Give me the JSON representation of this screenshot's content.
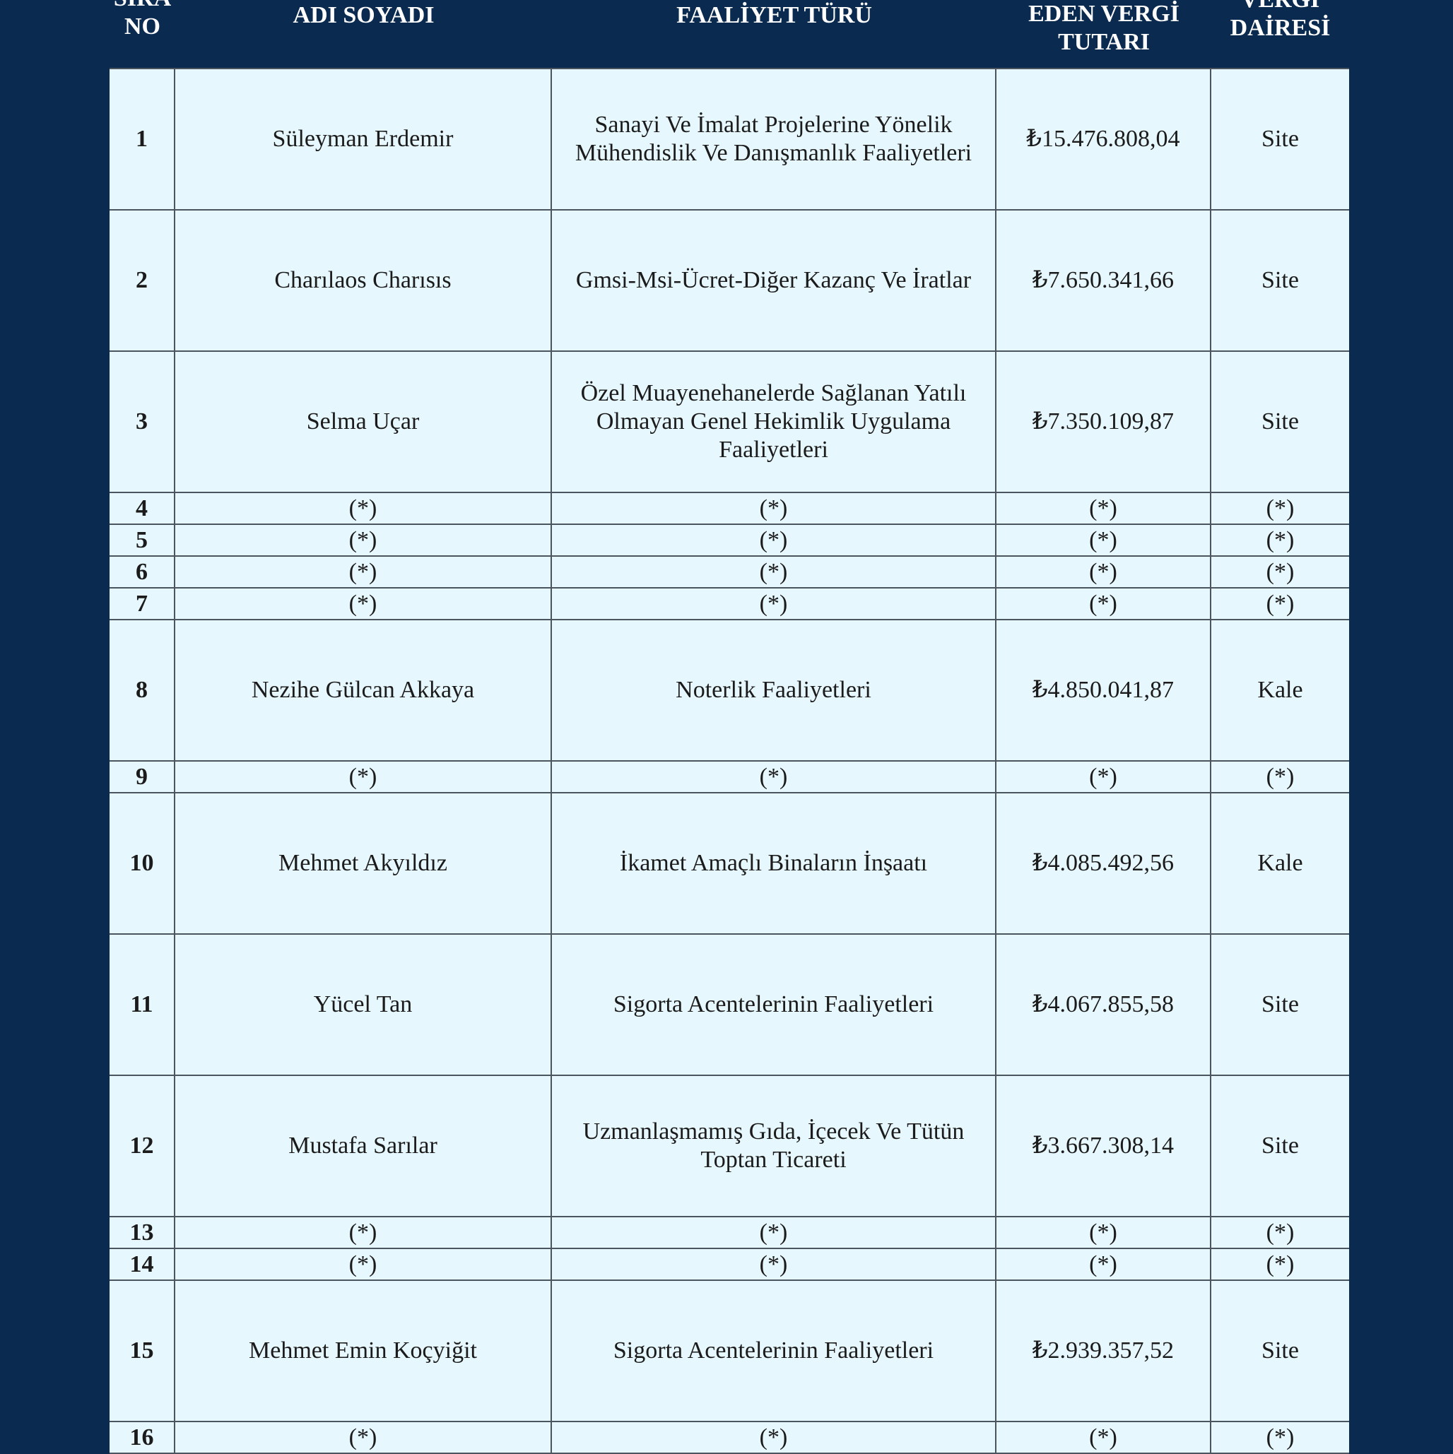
{
  "header": {
    "columns": [
      "SIRA\nNO",
      "ADI SOYADI",
      "FAALİYET TÜRÜ",
      "EDEN VERGİ\nTUTARI",
      "VERGİ\nDAİRESİ"
    ]
  },
  "rows": [
    {
      "no": "1",
      "name": "Süleyman Erdemir",
      "activity": "Sanayi Ve İmalat Projelerine Yönelik Mühendislik Ve Danışmanlık Faaliyetleri",
      "tax": "₺15.476.808,04",
      "office": "Site"
    },
    {
      "no": "2",
      "name": "Charılaos Charısıs",
      "activity": "Gmsi-Msi-Ücret-Diğer Kazanç Ve İratlar",
      "tax": "₺7.650.341,66",
      "office": "Site"
    },
    {
      "no": "3",
      "name": "Selma Uçar",
      "activity": "Özel Muayenehanelerde Sağlanan Yatılı Olmayan Genel Hekimlik Uygulama Faaliyetleri",
      "tax": "₺7.350.109,87",
      "office": "Site"
    },
    {
      "no": "4",
      "name": "(*)",
      "activity": "(*)",
      "tax": "(*)",
      "office": "(*)"
    },
    {
      "no": "5",
      "name": "(*)",
      "activity": "(*)",
      "tax": "(*)",
      "office": "(*)"
    },
    {
      "no": "6",
      "name": "(*)",
      "activity": "(*)",
      "tax": "(*)",
      "office": "(*)"
    },
    {
      "no": "7",
      "name": "(*)",
      "activity": "(*)",
      "tax": "(*)",
      "office": "(*)"
    },
    {
      "no": "8",
      "name": "Nezihe Gülcan Akkaya",
      "activity": "Noterlik Faaliyetleri",
      "tax": "₺4.850.041,87",
      "office": "Kale"
    },
    {
      "no": "9",
      "name": "(*)",
      "activity": "(*)",
      "tax": "(*)",
      "office": "(*)"
    },
    {
      "no": "10",
      "name": "Mehmet Akyıldız",
      "activity": "İkamet Amaçlı Binaların İnşaatı",
      "tax": "₺4.085.492,56",
      "office": "Kale"
    },
    {
      "no": "11",
      "name": "Yücel Tan",
      "activity": "Sigorta Acentelerinin Faaliyetleri",
      "tax": "₺4.067.855,58",
      "office": "Site"
    },
    {
      "no": "12",
      "name": "Mustafa Sarılar",
      "activity": "Uzmanlaşmamış Gıda, İçecek Ve Tütün Toptan Ticareti",
      "tax": "₺3.667.308,14",
      "office": "Site"
    },
    {
      "no": "13",
      "name": "(*)",
      "activity": "(*)",
      "tax": "(*)",
      "office": "(*)"
    },
    {
      "no": "14",
      "name": "(*)",
      "activity": "(*)",
      "tax": "(*)",
      "office": "(*)"
    },
    {
      "no": "15",
      "name": "Mehmet Emin Koçyiğit",
      "activity": "Sigorta Acentelerinin Faaliyetleri",
      "tax": "₺2.939.357,52",
      "office": "Site"
    },
    {
      "no": "16",
      "name": "(*)",
      "activity": "(*)",
      "tax": "(*)",
      "office": "(*)"
    }
  ]
}
